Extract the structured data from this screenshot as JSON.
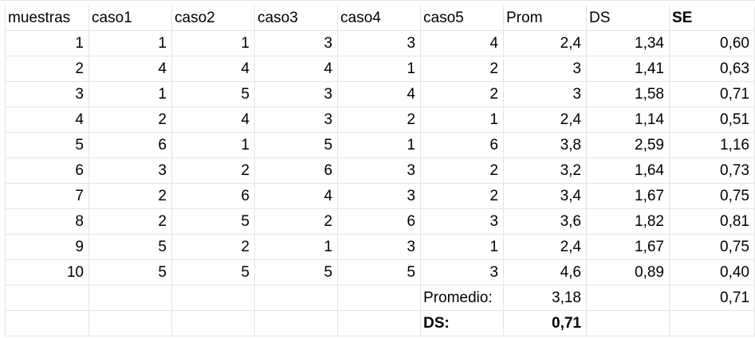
{
  "sheet": {
    "header": [
      "muestras",
      "caso1",
      "caso2",
      "caso3",
      "caso4",
      "caso5",
      "Prom",
      "DS",
      "SE"
    ],
    "rows": [
      [
        "1",
        "1",
        "1",
        "3",
        "3",
        "4",
        "2,4",
        "1,34",
        "0,60"
      ],
      [
        "2",
        "4",
        "4",
        "4",
        "1",
        "2",
        "3",
        "1,41",
        "0,63"
      ],
      [
        "3",
        "1",
        "5",
        "3",
        "4",
        "2",
        "3",
        "1,58",
        "0,71"
      ],
      [
        "4",
        "2",
        "4",
        "3",
        "2",
        "1",
        "2,4",
        "1,14",
        "0,51"
      ],
      [
        "5",
        "6",
        "1",
        "5",
        "1",
        "6",
        "3,8",
        "2,59",
        "1,16"
      ],
      [
        "6",
        "3",
        "2",
        "6",
        "3",
        "2",
        "3,2",
        "1,64",
        "0,73"
      ],
      [
        "7",
        "2",
        "6",
        "4",
        "3",
        "2",
        "3,4",
        "1,67",
        "0,75"
      ],
      [
        "8",
        "2",
        "5",
        "2",
        "6",
        "3",
        "3,6",
        "1,82",
        "0,81"
      ],
      [
        "9",
        "5",
        "2",
        "1",
        "3",
        "1",
        "2,4",
        "1,67",
        "0,75"
      ],
      [
        "10",
        "5",
        "5",
        "5",
        "5",
        "3",
        "4,6",
        "0,89",
        "0,40"
      ]
    ],
    "summary": {
      "promedio_label": "Promedio:",
      "promedio_value": "3,18",
      "se_promedio": "0,71",
      "ds_label": "DS:",
      "ds_value": "0,71"
    }
  }
}
